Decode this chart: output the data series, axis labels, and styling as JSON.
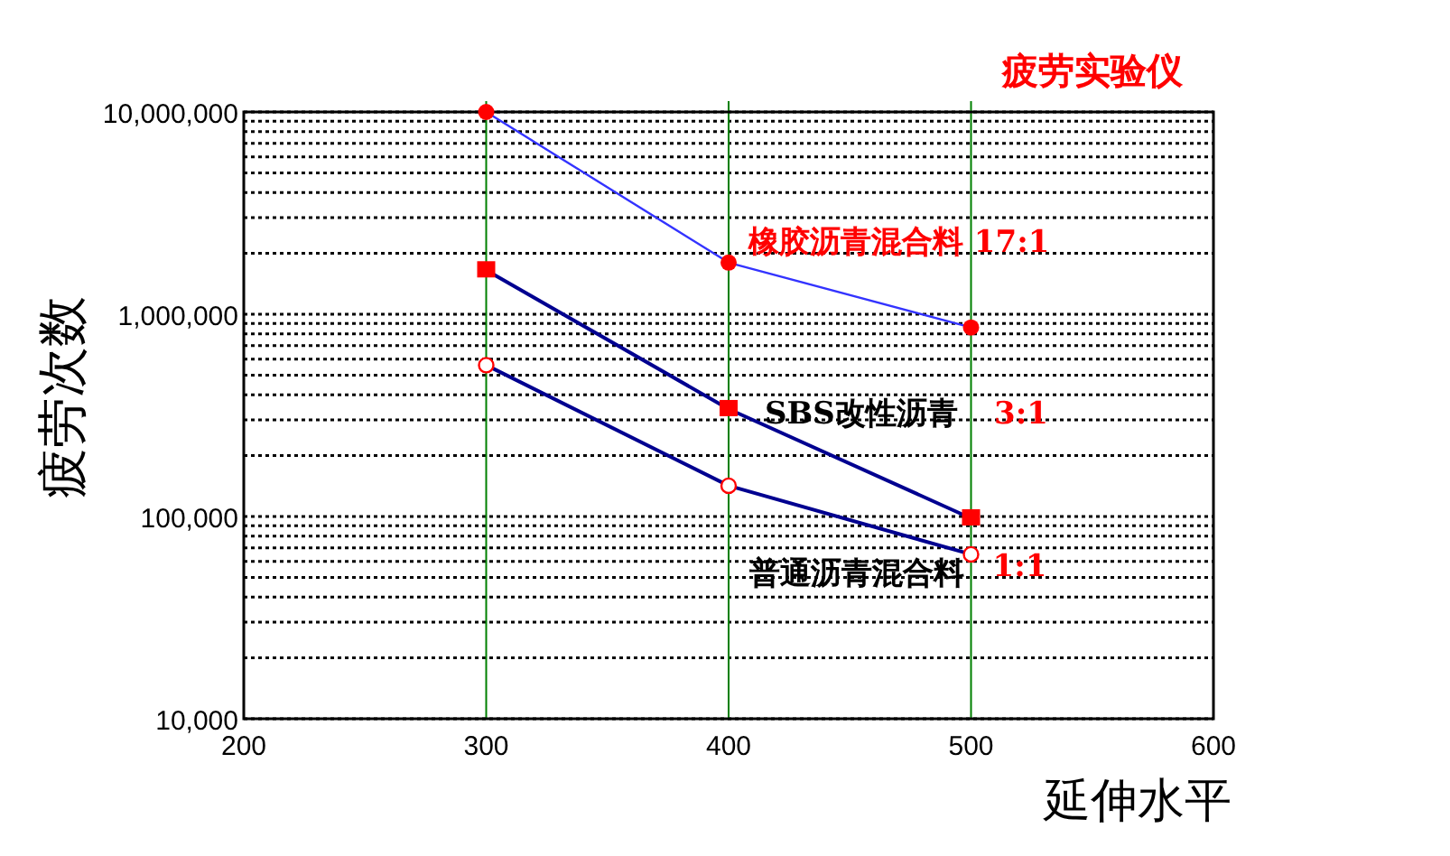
{
  "chart_data": {
    "type": "line",
    "title": "疲劳实验仪",
    "xlabel": "延伸水平",
    "ylabel": "疲劳次数",
    "log": "y",
    "grid": true,
    "xlim": [
      200,
      600
    ],
    "xticks": [
      200,
      300,
      400,
      500,
      600
    ],
    "ylim": [
      10000,
      10000000
    ],
    "yticks": [
      {
        "value": 10000,
        "label": "10,000"
      },
      {
        "value": 100000,
        "label": "100,000"
      },
      {
        "value": 1000000,
        "label": "1,000,000"
      },
      {
        "value": 10000000,
        "label": "10,000,000"
      }
    ],
    "x": [
      300,
      400,
      500
    ],
    "series": [
      {
        "color": "#3333ff",
        "marker": "circle",
        "values": [
          10000000,
          1800000,
          860000
        ]
      },
      {
        "color": "#000090",
        "marker": "square",
        "values": [
          1650000,
          340000,
          98000
        ]
      },
      {
        "color": "#000090",
        "marker": "open circle",
        "values": [
          560000,
          142000,
          65000
        ]
      }
    ],
    "annotations": [
      "橡胶沥青混合料  17:1",
      "SBS改性沥青",
      "3:1",
      "普通沥青混合料",
      "1:1"
    ]
  }
}
